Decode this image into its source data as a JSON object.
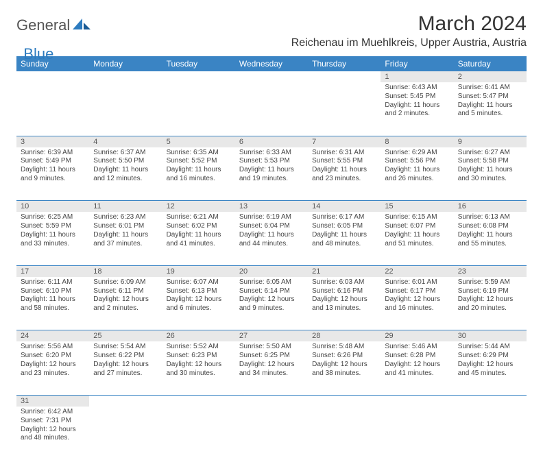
{
  "logo": {
    "text1": "General",
    "text2": "Blue"
  },
  "title": "March 2024",
  "location": "Reichenau im Muehlkreis, Upper Austria, Austria",
  "colors": {
    "header_bg": "#3a84c4",
    "header_fg": "#ffffff",
    "daynum_bg": "#e8e8e8",
    "row_border": "#3a84c4",
    "text": "#333333",
    "logo_blue": "#2d7bbf"
  },
  "typography": {
    "title_fontsize": 30,
    "location_fontsize": 16,
    "dayheader_fontsize": 12,
    "cell_fontsize": 10
  },
  "day_headers": [
    "Sunday",
    "Monday",
    "Tuesday",
    "Wednesday",
    "Thursday",
    "Friday",
    "Saturday"
  ],
  "weeks": [
    [
      null,
      null,
      null,
      null,
      null,
      {
        "n": "1",
        "sunrise": "6:43 AM",
        "sunset": "5:45 PM",
        "daylight": "11 hours and 2 minutes."
      },
      {
        "n": "2",
        "sunrise": "6:41 AM",
        "sunset": "5:47 PM",
        "daylight": "11 hours and 5 minutes."
      }
    ],
    [
      {
        "n": "3",
        "sunrise": "6:39 AM",
        "sunset": "5:49 PM",
        "daylight": "11 hours and 9 minutes."
      },
      {
        "n": "4",
        "sunrise": "6:37 AM",
        "sunset": "5:50 PM",
        "daylight": "11 hours and 12 minutes."
      },
      {
        "n": "5",
        "sunrise": "6:35 AM",
        "sunset": "5:52 PM",
        "daylight": "11 hours and 16 minutes."
      },
      {
        "n": "6",
        "sunrise": "6:33 AM",
        "sunset": "5:53 PM",
        "daylight": "11 hours and 19 minutes."
      },
      {
        "n": "7",
        "sunrise": "6:31 AM",
        "sunset": "5:55 PM",
        "daylight": "11 hours and 23 minutes."
      },
      {
        "n": "8",
        "sunrise": "6:29 AM",
        "sunset": "5:56 PM",
        "daylight": "11 hours and 26 minutes."
      },
      {
        "n": "9",
        "sunrise": "6:27 AM",
        "sunset": "5:58 PM",
        "daylight": "11 hours and 30 minutes."
      }
    ],
    [
      {
        "n": "10",
        "sunrise": "6:25 AM",
        "sunset": "5:59 PM",
        "daylight": "11 hours and 33 minutes."
      },
      {
        "n": "11",
        "sunrise": "6:23 AM",
        "sunset": "6:01 PM",
        "daylight": "11 hours and 37 minutes."
      },
      {
        "n": "12",
        "sunrise": "6:21 AM",
        "sunset": "6:02 PM",
        "daylight": "11 hours and 41 minutes."
      },
      {
        "n": "13",
        "sunrise": "6:19 AM",
        "sunset": "6:04 PM",
        "daylight": "11 hours and 44 minutes."
      },
      {
        "n": "14",
        "sunrise": "6:17 AM",
        "sunset": "6:05 PM",
        "daylight": "11 hours and 48 minutes."
      },
      {
        "n": "15",
        "sunrise": "6:15 AM",
        "sunset": "6:07 PM",
        "daylight": "11 hours and 51 minutes."
      },
      {
        "n": "16",
        "sunrise": "6:13 AM",
        "sunset": "6:08 PM",
        "daylight": "11 hours and 55 minutes."
      }
    ],
    [
      {
        "n": "17",
        "sunrise": "6:11 AM",
        "sunset": "6:10 PM",
        "daylight": "11 hours and 58 minutes."
      },
      {
        "n": "18",
        "sunrise": "6:09 AM",
        "sunset": "6:11 PM",
        "daylight": "12 hours and 2 minutes."
      },
      {
        "n": "19",
        "sunrise": "6:07 AM",
        "sunset": "6:13 PM",
        "daylight": "12 hours and 6 minutes."
      },
      {
        "n": "20",
        "sunrise": "6:05 AM",
        "sunset": "6:14 PM",
        "daylight": "12 hours and 9 minutes."
      },
      {
        "n": "21",
        "sunrise": "6:03 AM",
        "sunset": "6:16 PM",
        "daylight": "12 hours and 13 minutes."
      },
      {
        "n": "22",
        "sunrise": "6:01 AM",
        "sunset": "6:17 PM",
        "daylight": "12 hours and 16 minutes."
      },
      {
        "n": "23",
        "sunrise": "5:59 AM",
        "sunset": "6:19 PM",
        "daylight": "12 hours and 20 minutes."
      }
    ],
    [
      {
        "n": "24",
        "sunrise": "5:56 AM",
        "sunset": "6:20 PM",
        "daylight": "12 hours and 23 minutes."
      },
      {
        "n": "25",
        "sunrise": "5:54 AM",
        "sunset": "6:22 PM",
        "daylight": "12 hours and 27 minutes."
      },
      {
        "n": "26",
        "sunrise": "5:52 AM",
        "sunset": "6:23 PM",
        "daylight": "12 hours and 30 minutes."
      },
      {
        "n": "27",
        "sunrise": "5:50 AM",
        "sunset": "6:25 PM",
        "daylight": "12 hours and 34 minutes."
      },
      {
        "n": "28",
        "sunrise": "5:48 AM",
        "sunset": "6:26 PM",
        "daylight": "12 hours and 38 minutes."
      },
      {
        "n": "29",
        "sunrise": "5:46 AM",
        "sunset": "6:28 PM",
        "daylight": "12 hours and 41 minutes."
      },
      {
        "n": "30",
        "sunrise": "5:44 AM",
        "sunset": "6:29 PM",
        "daylight": "12 hours and 45 minutes."
      }
    ],
    [
      {
        "n": "31",
        "sunrise": "6:42 AM",
        "sunset": "7:31 PM",
        "daylight": "12 hours and 48 minutes."
      },
      null,
      null,
      null,
      null,
      null,
      null
    ]
  ],
  "labels": {
    "sunrise": "Sunrise:",
    "sunset": "Sunset:",
    "daylight": "Daylight:"
  }
}
